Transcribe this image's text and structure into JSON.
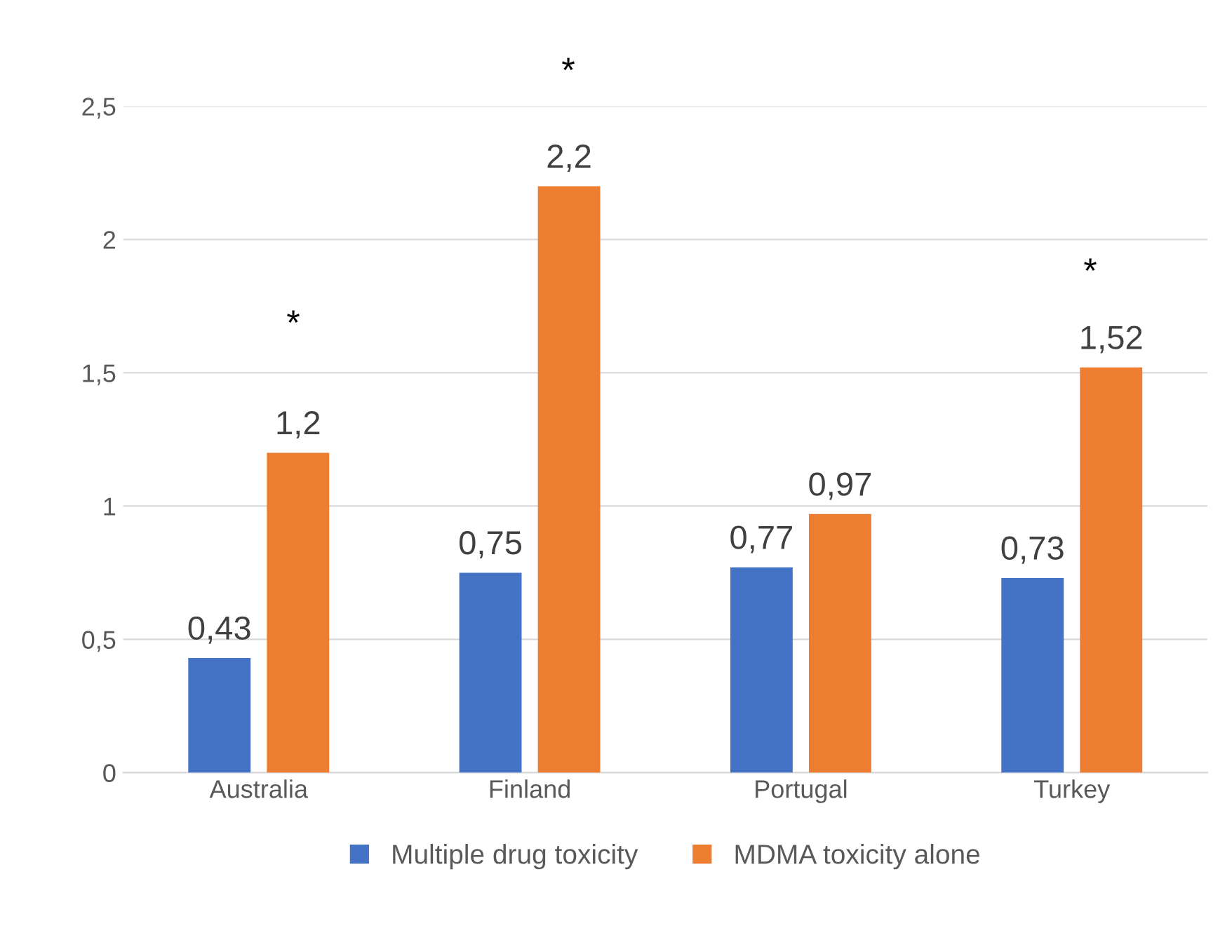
{
  "chart_data": {
    "type": "bar",
    "categories": [
      "Australia",
      "Finland",
      "Portugal",
      "Turkey"
    ],
    "series": [
      {
        "name": "Multiple drug toxicity",
        "color": "#4472c4",
        "values": [
          0.43,
          0.75,
          0.77,
          0.73
        ],
        "value_labels": [
          "0,43",
          "0,75",
          "0,77",
          "0,73"
        ]
      },
      {
        "name": "MDMA toxicity alone",
        "color": "#ed7d31",
        "values": [
          1.2,
          2.2,
          0.97,
          1.52
        ],
        "value_labels": [
          "1,2",
          "2,2",
          "0,97",
          "1,52"
        ]
      }
    ],
    "ylim": [
      0,
      2.5
    ],
    "yticks": [
      0,
      {
        "value": 0.5,
        "label": "0,5"
      },
      1,
      {
        "value": 1.5,
        "label": "1,5"
      },
      2,
      {
        "value": 2.5,
        "label": "2,5"
      }
    ],
    "grid": "y",
    "legend": "bottom",
    "annotations": [
      "*",
      "*",
      "*"
    ]
  }
}
